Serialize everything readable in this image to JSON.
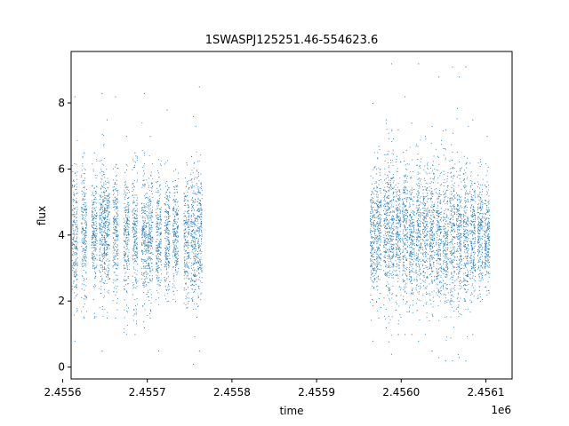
{
  "chart_data": {
    "type": "scatter",
    "title": "1SWASPJ125251.46-554623.6",
    "xlabel": "time",
    "ylabel": "flux",
    "x_offset_label": "1e6",
    "xlim": [
      2.45561,
      2.456131
    ],
    "ylim": [
      -0.36,
      9.56
    ],
    "x_ticks": [
      2.4556,
      2.4557,
      2.4558,
      2.4559,
      2.456,
      2.4561
    ],
    "x_tick_labels": [
      "2.4556",
      "2.4557",
      "2.4558",
      "2.4559",
      "2.4560",
      "2.4561"
    ],
    "y_ticks": [
      0,
      2,
      4,
      6,
      8
    ],
    "y_tick_labels": [
      "0",
      "2",
      "4",
      "6",
      "8"
    ],
    "grid": false,
    "legend": "none",
    "colors": {
      "points": "#1f77b4"
    },
    "series": [
      {
        "observing_nights": [
          {
            "x": 2.455614,
            "center": 4.0,
            "spread": 1.0,
            "min": 0.8,
            "max": 8.2
          },
          {
            "x": 2.455625,
            "center": 4.0,
            "spread": 0.9,
            "min": 1.5,
            "max": 6.5
          },
          {
            "x": 2.455637,
            "center": 4.1,
            "spread": 0.9,
            "min": 1.5,
            "max": 6.5
          },
          {
            "x": 2.455646,
            "center": 4.1,
            "spread": 1.1,
            "min": 0.5,
            "max": 8.3
          },
          {
            "x": 2.455652,
            "center": 4.0,
            "spread": 0.9,
            "min": 1.5,
            "max": 7.5
          },
          {
            "x": 2.455662,
            "center": 4.1,
            "spread": 0.9,
            "min": 1.5,
            "max": 8.2
          },
          {
            "x": 2.455675,
            "center": 3.9,
            "spread": 1.0,
            "min": 1.0,
            "max": 7.0
          },
          {
            "x": 2.455685,
            "center": 4.0,
            "spread": 1.0,
            "min": 1.0,
            "max": 6.5
          },
          {
            "x": 2.455696,
            "center": 4.0,
            "spread": 1.0,
            "min": 1.2,
            "max": 8.3
          },
          {
            "x": 2.455703,
            "center": 3.9,
            "spread": 0.9,
            "min": 1.5,
            "max": 7.0
          },
          {
            "x": 2.455713,
            "center": 4.0,
            "spread": 0.9,
            "min": 0.5,
            "max": 6.3
          },
          {
            "x": 2.455723,
            "center": 3.9,
            "spread": 0.9,
            "min": 2.0,
            "max": 7.8
          },
          {
            "x": 2.455733,
            "center": 4.0,
            "spread": 0.8,
            "min": 2.0,
            "max": 6.0
          },
          {
            "x": 2.455746,
            "center": 3.9,
            "spread": 0.9,
            "min": 1.8,
            "max": 6.2
          },
          {
            "x": 2.455754,
            "center": 4.0,
            "spread": 1.0,
            "min": 0.1,
            "max": 7.6
          },
          {
            "x": 2.455761,
            "center": 4.1,
            "spread": 1.0,
            "min": 0.5,
            "max": 8.5
          },
          {
            "x": 2.455966,
            "center": 4.0,
            "spread": 0.9,
            "min": 0.8,
            "max": 8.0
          },
          {
            "x": 2.455973,
            "center": 4.1,
            "spread": 1.0,
            "min": 1.5,
            "max": 6.7
          },
          {
            "x": 2.455982,
            "center": 4.2,
            "spread": 1.0,
            "min": 1.2,
            "max": 7.5
          },
          {
            "x": 2.455988,
            "center": 4.1,
            "spread": 1.1,
            "min": 0.4,
            "max": 9.2
          },
          {
            "x": 2.455996,
            "center": 4.0,
            "spread": 1.0,
            "min": 1.0,
            "max": 7.2
          },
          {
            "x": 2.456004,
            "center": 4.1,
            "spread": 1.0,
            "min": 1.0,
            "max": 8.2
          },
          {
            "x": 2.456012,
            "center": 4.0,
            "spread": 1.0,
            "min": 1.0,
            "max": 7.4
          },
          {
            "x": 2.45602,
            "center": 4.1,
            "spread": 1.1,
            "min": 0.8,
            "max": 9.2
          },
          {
            "x": 2.456028,
            "center": 4.0,
            "spread": 1.0,
            "min": 1.0,
            "max": 7.0
          },
          {
            "x": 2.456036,
            "center": 4.0,
            "spread": 1.0,
            "min": 0.5,
            "max": 7.3
          },
          {
            "x": 2.456044,
            "center": 4.0,
            "spread": 1.1,
            "min": 0.3,
            "max": 8.8
          },
          {
            "x": 2.456052,
            "center": 3.9,
            "spread": 1.1,
            "min": 0.2,
            "max": 7.2
          },
          {
            "x": 2.45606,
            "center": 4.0,
            "spread": 1.1,
            "min": 0.2,
            "max": 9.1
          },
          {
            "x": 2.456068,
            "center": 3.9,
            "spread": 1.1,
            "min": 0.3,
            "max": 8.8
          },
          {
            "x": 2.456076,
            "center": 4.0,
            "spread": 1.0,
            "min": 0.2,
            "max": 9.1
          },
          {
            "x": 2.456084,
            "center": 4.0,
            "spread": 0.9,
            "min": 1.0,
            "max": 7.5
          },
          {
            "x": 2.456093,
            "center": 4.1,
            "spread": 0.9,
            "min": 2.0,
            "max": 6.3
          },
          {
            "x": 2.456101,
            "center": 4.0,
            "spread": 0.8,
            "min": 2.2,
            "max": 7.0
          }
        ]
      }
    ]
  }
}
